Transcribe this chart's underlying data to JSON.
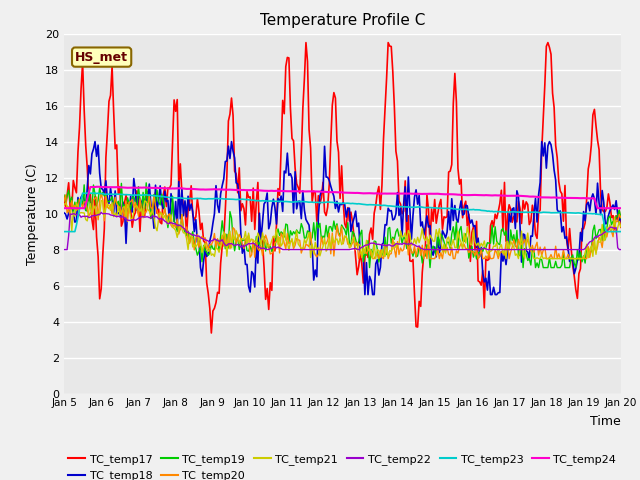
{
  "title": "Temperature Profile C",
  "xlabel": "Time",
  "ylabel": "Temperature (C)",
  "ylim": [
    0,
    20
  ],
  "yticks": [
    0,
    2,
    4,
    6,
    8,
    10,
    12,
    14,
    16,
    18,
    20
  ],
  "series_names": [
    "TC_temp17",
    "TC_temp18",
    "TC_temp19",
    "TC_temp20",
    "TC_temp21",
    "TC_temp22",
    "TC_temp23",
    "TC_temp24"
  ],
  "series_colors": [
    "#ff0000",
    "#0000cc",
    "#00cc00",
    "#ff8800",
    "#cccc00",
    "#9900cc",
    "#00cccc",
    "#ff00cc"
  ],
  "annotation_text": "HS_met",
  "background_color": "#e8e8e8",
  "fig_bg_color": "#f0f0f0",
  "n_points": 360,
  "tick_labels": [
    "Jan 5",
    "Jan 6",
    "Jan 7",
    "Jan 8",
    "Jan 9",
    "Jan 10",
    "Jan 11",
    "Jan 12",
    "Jan 13",
    "Jan 14",
    "Jan 15",
    "Jan 16",
    "Jan 17",
    "Jan 18",
    "Jan 19",
    "Jan 20"
  ],
  "tick_positions": [
    5,
    6,
    7,
    8,
    9,
    10,
    11,
    12,
    13,
    14,
    15,
    16,
    17,
    18,
    19,
    20
  ]
}
